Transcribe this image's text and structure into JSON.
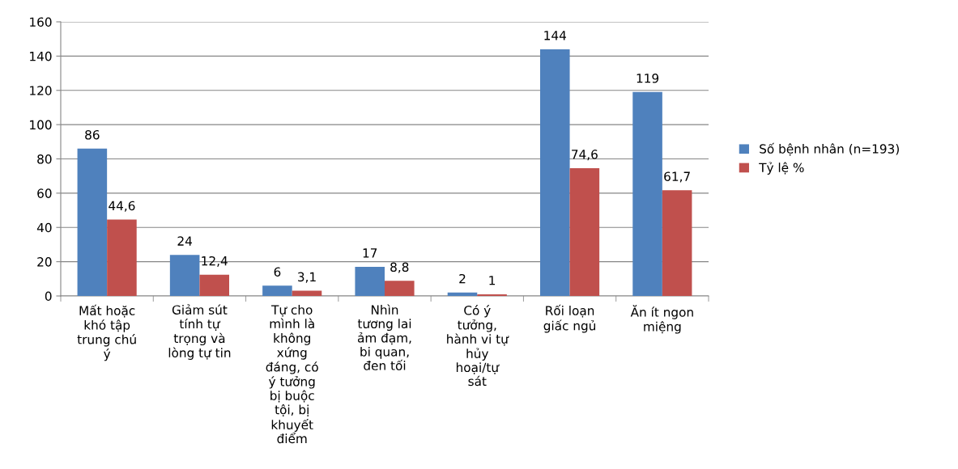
{
  "chart_data": {
    "type": "bar",
    "categories": [
      "Mất hoặc\nkhó tập\ntrung chú\ný",
      "Giảm sút\ntính tự\ntrọng và\nlòng tự tin",
      "Tự cho\nmình là\nkhông\nxứng\nđáng, có\ný tưởng\nbị buộc\ntội, bị\nkhuyết\nđiểm",
      "Nhìn\ntương lai\nảm đạm,\nbi quan,\nđen tối",
      "Có ý\ntưởng,\nhành vi tự\nhủy\nhoại/tự\nsát",
      "Rối loạn\ngiấc ngủ",
      "Ăn ít ngon\nmiệng"
    ],
    "series": [
      {
        "name": "Số bệnh nhân (n=193)",
        "color": "#4f81bd",
        "values": [
          86,
          24,
          6,
          17,
          2,
          144,
          119
        ],
        "value_labels": [
          "86",
          "24",
          "6",
          "17",
          "2",
          "144",
          "119"
        ]
      },
      {
        "name": "Tỷ lệ %",
        "color": "#c0504d",
        "values": [
          44.6,
          12.4,
          3.1,
          8.8,
          1,
          74.6,
          61.7
        ],
        "value_labels": [
          "44,6",
          "12,4",
          "3,1",
          "8,8",
          "1",
          "74,6",
          "61,7"
        ]
      }
    ],
    "ylim": [
      0,
      160
    ],
    "yticks": [
      0,
      20,
      40,
      60,
      80,
      100,
      120,
      140,
      160
    ],
    "grid": "y",
    "legend": "right"
  }
}
